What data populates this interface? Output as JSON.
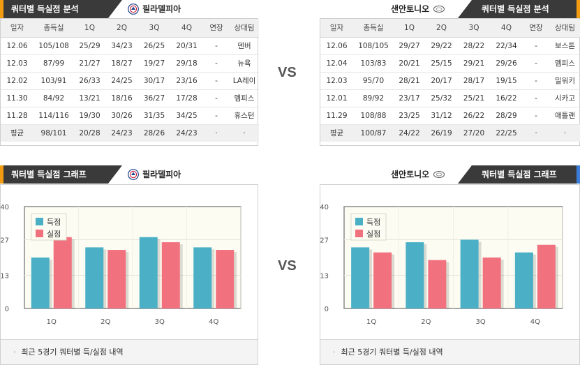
{
  "sections": {
    "table_title": "쿼터별 득실점 분석",
    "graph_title": "쿼터별 득실점 그래프"
  },
  "teams": {
    "left": "필라델피아",
    "right": "샌안토니오"
  },
  "vs_label": "VS",
  "table_headers": [
    "일자",
    "총득실",
    "1Q",
    "2Q",
    "3Q",
    "4Q",
    "연장",
    "상대팀"
  ],
  "left_table": {
    "rows": [
      [
        "12.06",
        "105/108",
        "25/29",
        "34/23",
        "26/25",
        "20/31",
        "-",
        "덴버"
      ],
      [
        "12.03",
        "87/99",
        "21/27",
        "18/27",
        "19/27",
        "29/18",
        "-",
        "뉴욕"
      ],
      [
        "12.02",
        "103/91",
        "26/33",
        "24/25",
        "30/17",
        "23/16",
        "-",
        "LA레이"
      ],
      [
        "11.30",
        "84/92",
        "13/21",
        "18/16",
        "36/27",
        "17/28",
        "-",
        "멤피스"
      ],
      [
        "11.28",
        "114/116",
        "19/30",
        "30/26",
        "31/35",
        "34/25",
        "-",
        "휴스턴"
      ]
    ],
    "avg": [
      "평균",
      "98/101",
      "20/28",
      "24/23",
      "28/26",
      "24/23",
      "·",
      "·"
    ]
  },
  "right_table": {
    "rows": [
      [
        "12.06",
        "108/105",
        "29/27",
        "29/22",
        "28/22",
        "22/34",
        "-",
        "보스톤"
      ],
      [
        "12.04",
        "103/83",
        "20/21",
        "25/15",
        "29/21",
        "29/26",
        "-",
        "멤피스"
      ],
      [
        "12.03",
        "95/70",
        "28/21",
        "20/17",
        "28/17",
        "19/15",
        "-",
        "밀워키"
      ],
      [
        "12.01",
        "89/92",
        "23/17",
        "25/32",
        "25/21",
        "16/22",
        "-",
        "시카고"
      ],
      [
        "11.29",
        "108/88",
        "23/25",
        "31/12",
        "26/22",
        "28/29",
        "-",
        "애틀랜"
      ]
    ],
    "avg": [
      "평균",
      "100/87",
      "24/22",
      "26/19",
      "27/20",
      "22/25",
      "·",
      "·"
    ]
  },
  "note_text": "최근 5경기 쿼터별 득/실점 내역",
  "colors": {
    "scored": "#4bb0c6",
    "allowed": "#f2717f",
    "tab_bg": "#3a3a3a",
    "accent_orange": "#f39c12",
    "accent_blue": "#3b7dd8"
  },
  "chart_data": [
    {
      "type": "bar",
      "team": "필라델피아",
      "categories": [
        "1Q",
        "2Q",
        "3Q",
        "4Q"
      ],
      "series": [
        {
          "name": "득점",
          "values": [
            20,
            24,
            28,
            24
          ]
        },
        {
          "name": "실점",
          "values": [
            28,
            23,
            26,
            23
          ]
        }
      ],
      "yticks": [
        0,
        13,
        27,
        40
      ],
      "ylim": [
        0,
        40
      ],
      "legend": "top-left",
      "grid": true
    },
    {
      "type": "bar",
      "team": "샌안토니오",
      "categories": [
        "1Q",
        "2Q",
        "3Q",
        "4Q"
      ],
      "series": [
        {
          "name": "득점",
          "values": [
            24,
            26,
            27,
            22
          ]
        },
        {
          "name": "실점",
          "values": [
            22,
            19,
            20,
            25
          ]
        }
      ],
      "yticks": [
        0,
        13,
        27,
        40
      ],
      "ylim": [
        0,
        40
      ],
      "legend": "top-left",
      "grid": true
    }
  ]
}
